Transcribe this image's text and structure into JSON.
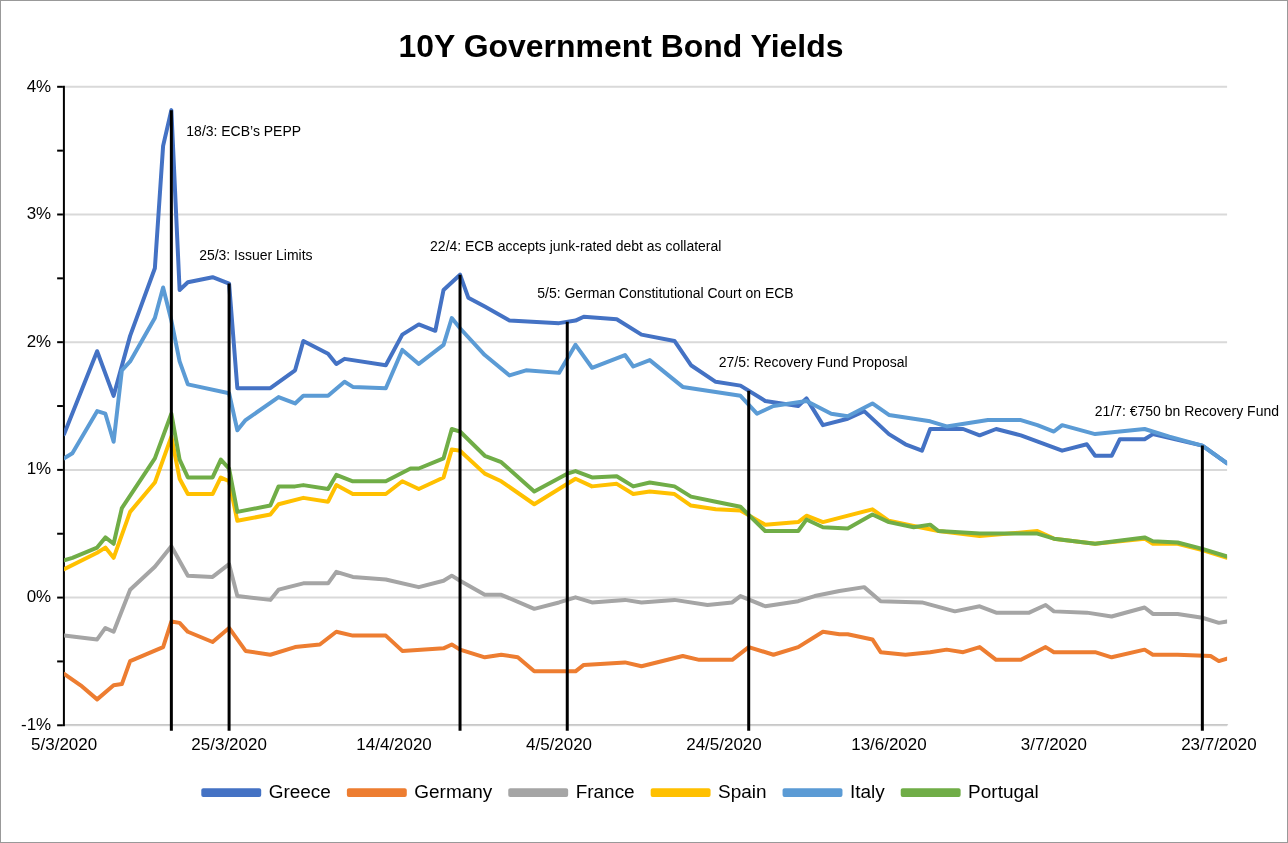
{
  "chart_data": {
    "type": "line",
    "title": "10Y Government Bond Yields",
    "marker": "none",
    "line_style": "solid",
    "grid": "y",
    "legend": "bottom",
    "xlim": [
      "2020-03-05",
      "2020-07-24"
    ],
    "xticks": [
      {
        "value": "2020-03-05",
        "label": "5/3/2020"
      },
      {
        "value": "2020-03-25",
        "label": "25/3/2020"
      },
      {
        "value": "2020-04-14",
        "label": "14/4/2020"
      },
      {
        "value": "2020-05-04",
        "label": "4/5/2020"
      },
      {
        "value": "2020-05-24",
        "label": "24/5/2020"
      },
      {
        "value": "2020-06-13",
        "label": "13/6/2020"
      },
      {
        "value": "2020-07-03",
        "label": "3/7/2020"
      },
      {
        "value": "2020-07-23",
        "label": "23/7/2020"
      }
    ],
    "ylim": [
      -1,
      4
    ],
    "yticks": [
      {
        "value": -1,
        "label": "-1%"
      },
      {
        "value": -0.5,
        "label": null
      },
      {
        "value": 0,
        "label": "0%"
      },
      {
        "value": 0.5,
        "label": null
      },
      {
        "value": 1,
        "label": "1%"
      },
      {
        "value": 1.5,
        "label": null
      },
      {
        "value": 2,
        "label": "2%"
      },
      {
        "value": 2.5,
        "label": null
      },
      {
        "value": 3,
        "label": "3%"
      },
      {
        "value": 3.5,
        "label": null
      },
      {
        "value": 4,
        "label": "4%"
      }
    ],
    "ref_lines": [
      {
        "axis": "x",
        "value": "2020-03-18",
        "label": "18/3: ECB’s PEPP",
        "color": "#000000"
      },
      {
        "axis": "x",
        "value": "2020-03-25",
        "label": "25/3: Issuer Limits",
        "color": "#000000"
      },
      {
        "axis": "x",
        "value": "2020-04-22",
        "label": "22/4: ECB accepts junk-rated debt as collateral",
        "color": "#000000"
      },
      {
        "axis": "x",
        "value": "2020-05-05",
        "label": "5/5: German Constitutional Court on ECB",
        "color": "#000000"
      },
      {
        "axis": "x",
        "value": "2020-05-27",
        "label": "27/5: Recovery Fund Proposal",
        "color": "#000000"
      },
      {
        "axis": "x",
        "value": "2020-07-21",
        "label": "21/7: €750 bn Recovery Fund",
        "color": "#000000"
      }
    ],
    "series": [
      {
        "name": "Greece",
        "color": "#4472c4",
        "x": [
          "2020-03-05",
          "2020-03-09",
          "2020-03-11",
          "2020-03-13",
          "2020-03-16",
          "2020-03-17",
          "2020-03-18",
          "2020-03-19",
          "2020-03-20",
          "2020-03-23",
          "2020-03-25",
          "2020-03-26",
          "2020-03-30",
          "2020-04-02",
          "2020-04-03",
          "2020-04-06",
          "2020-04-07",
          "2020-04-08",
          "2020-04-13",
          "2020-04-15",
          "2020-04-17",
          "2020-04-19",
          "2020-04-20",
          "2020-04-22",
          "2020-04-23",
          "2020-04-25",
          "2020-04-28",
          "2020-05-04",
          "2020-05-06",
          "2020-05-07",
          "2020-05-11",
          "2020-05-14",
          "2020-05-18",
          "2020-05-20",
          "2020-05-23",
          "2020-05-26",
          "2020-05-29",
          "2020-06-02",
          "2020-06-03",
          "2020-06-05",
          "2020-06-08",
          "2020-06-10",
          "2020-06-13",
          "2020-06-15",
          "2020-06-17",
          "2020-06-18",
          "2020-06-22",
          "2020-06-24",
          "2020-06-26",
          "2020-06-29",
          "2020-07-04",
          "2020-07-07",
          "2020-07-08",
          "2020-07-10",
          "2020-07-11",
          "2020-07-14",
          "2020-07-15",
          "2020-07-21",
          "2020-07-24"
        ],
        "values": [
          1.28,
          1.93,
          1.58,
          2.05,
          2.58,
          3.54,
          3.82,
          2.41,
          2.47,
          2.51,
          2.46,
          1.64,
          1.64,
          1.78,
          2.01,
          1.91,
          1.83,
          1.87,
          1.82,
          2.06,
          2.14,
          2.09,
          2.41,
          2.53,
          2.35,
          2.28,
          2.17,
          2.15,
          2.17,
          2.2,
          2.18,
          2.06,
          2.01,
          1.82,
          1.69,
          1.66,
          1.54,
          1.5,
          1.56,
          1.35,
          1.4,
          1.46,
          1.28,
          1.2,
          1.15,
          1.32,
          1.32,
          1.27,
          1.32,
          1.27,
          1.15,
          1.2,
          1.11,
          1.11,
          1.24,
          1.24,
          1.28,
          1.19,
          1.05
        ]
      },
      {
        "name": "Germany",
        "color": "#ed7d31",
        "x": [
          "2020-03-05",
          "2020-03-07",
          "2020-03-09",
          "2020-03-11",
          "2020-03-12",
          "2020-03-13",
          "2020-03-17",
          "2020-03-18",
          "2020-03-19",
          "2020-03-20",
          "2020-03-23",
          "2020-03-25",
          "2020-03-27",
          "2020-03-30",
          "2020-04-02",
          "2020-04-05",
          "2020-04-07",
          "2020-04-09",
          "2020-04-13",
          "2020-04-15",
          "2020-04-20",
          "2020-04-21",
          "2020-04-22",
          "2020-04-25",
          "2020-04-27",
          "2020-04-29",
          "2020-05-01",
          "2020-05-06",
          "2020-05-07",
          "2020-05-12",
          "2020-05-14",
          "2020-05-19",
          "2020-05-21",
          "2020-05-25",
          "2020-05-27",
          "2020-05-30",
          "2020-06-02",
          "2020-06-05",
          "2020-06-07",
          "2020-06-08",
          "2020-06-11",
          "2020-06-12",
          "2020-06-15",
          "2020-06-18",
          "2020-06-20",
          "2020-06-22",
          "2020-06-24",
          "2020-06-26",
          "2020-06-29",
          "2020-07-02",
          "2020-07-03",
          "2020-07-08",
          "2020-07-10",
          "2020-07-14",
          "2020-07-15",
          "2020-07-18",
          "2020-07-22",
          "2020-07-23",
          "2020-07-24"
        ],
        "values": [
          -0.6,
          -0.69,
          -0.8,
          -0.69,
          -0.68,
          -0.5,
          -0.39,
          -0.19,
          -0.2,
          -0.27,
          -0.35,
          -0.24,
          -0.42,
          -0.45,
          -0.39,
          -0.37,
          -0.27,
          -0.3,
          -0.3,
          -0.42,
          -0.4,
          -0.37,
          -0.41,
          -0.47,
          -0.45,
          -0.47,
          -0.58,
          -0.58,
          -0.53,
          -0.51,
          -0.54,
          -0.46,
          -0.49,
          -0.49,
          -0.39,
          -0.45,
          -0.39,
          -0.27,
          -0.29,
          -0.29,
          -0.33,
          -0.43,
          -0.45,
          -0.43,
          -0.41,
          -0.43,
          -0.39,
          -0.49,
          -0.49,
          -0.39,
          -0.43,
          -0.43,
          -0.47,
          -0.41,
          -0.45,
          -0.45,
          -0.46,
          -0.5,
          -0.48
        ]
      },
      {
        "name": "France",
        "color": "#a5a5a5",
        "x": [
          "2020-03-05",
          "2020-03-09",
          "2020-03-10",
          "2020-03-11",
          "2020-03-13",
          "2020-03-16",
          "2020-03-18",
          "2020-03-20",
          "2020-03-23",
          "2020-03-25",
          "2020-03-26",
          "2020-03-30",
          "2020-03-31",
          "2020-04-03",
          "2020-04-06",
          "2020-04-07",
          "2020-04-09",
          "2020-04-13",
          "2020-04-17",
          "2020-04-20",
          "2020-04-21",
          "2020-04-22",
          "2020-04-25",
          "2020-04-27",
          "2020-05-01",
          "2020-05-04",
          "2020-05-06",
          "2020-05-08",
          "2020-05-12",
          "2020-05-14",
          "2020-05-18",
          "2020-05-22",
          "2020-05-25",
          "2020-05-26",
          "2020-05-29",
          "2020-06-02",
          "2020-06-04",
          "2020-06-07",
          "2020-06-10",
          "2020-06-12",
          "2020-06-17",
          "2020-06-21",
          "2020-06-24",
          "2020-06-26",
          "2020-06-30",
          "2020-07-02",
          "2020-07-03",
          "2020-07-07",
          "2020-07-10",
          "2020-07-14",
          "2020-07-15",
          "2020-07-18",
          "2020-07-21",
          "2020-07-23",
          "2020-07-24"
        ],
        "values": [
          -0.3,
          -0.33,
          -0.24,
          -0.27,
          0.06,
          0.24,
          0.4,
          0.17,
          0.16,
          0.26,
          0.01,
          -0.02,
          0.06,
          0.11,
          0.11,
          0.2,
          0.16,
          0.14,
          0.08,
          0.13,
          0.17,
          0.13,
          0.02,
          0.02,
          -0.09,
          -0.04,
          0,
          -0.04,
          -0.02,
          -0.04,
          -0.02,
          -0.06,
          -0.04,
          0.01,
          -0.07,
          -0.03,
          0.01,
          0.05,
          0.08,
          -0.03,
          -0.04,
          -0.11,
          -0.07,
          -0.12,
          -0.12,
          -0.06,
          -0.11,
          -0.12,
          -0.15,
          -0.08,
          -0.13,
          -0.13,
          -0.16,
          -0.2,
          -0.19
        ]
      },
      {
        "name": "Spain",
        "color": "#ffc000",
        "x": [
          "2020-03-05",
          "2020-03-09",
          "2020-03-10",
          "2020-03-11",
          "2020-03-13",
          "2020-03-16",
          "2020-03-18",
          "2020-03-19",
          "2020-03-20",
          "2020-03-23",
          "2020-03-24",
          "2020-03-25",
          "2020-03-26",
          "2020-03-30",
          "2020-03-31",
          "2020-04-03",
          "2020-04-06",
          "2020-04-07",
          "2020-04-09",
          "2020-04-13",
          "2020-04-15",
          "2020-04-17",
          "2020-04-20",
          "2020-04-21",
          "2020-04-22",
          "2020-04-25",
          "2020-04-27",
          "2020-05-01",
          "2020-05-06",
          "2020-05-08",
          "2020-05-11",
          "2020-05-13",
          "2020-05-15",
          "2020-05-18",
          "2020-05-20",
          "2020-05-23",
          "2020-05-26",
          "2020-05-29",
          "2020-06-02",
          "2020-06-03",
          "2020-06-05",
          "2020-06-11",
          "2020-06-13",
          "2020-06-16",
          "2020-06-19",
          "2020-06-24",
          "2020-07-01",
          "2020-07-03",
          "2020-07-08",
          "2020-07-14",
          "2020-07-15",
          "2020-07-18",
          "2020-07-21",
          "2020-07-24"
        ],
        "values": [
          0.22,
          0.35,
          0.39,
          0.31,
          0.67,
          0.9,
          1.26,
          0.93,
          0.81,
          0.81,
          0.94,
          0.91,
          0.6,
          0.65,
          0.73,
          0.78,
          0.75,
          0.88,
          0.81,
          0.81,
          0.91,
          0.85,
          0.94,
          1.16,
          1.15,
          0.97,
          0.91,
          0.73,
          0.93,
          0.87,
          0.89,
          0.81,
          0.83,
          0.81,
          0.72,
          0.69,
          0.68,
          0.57,
          0.59,
          0.64,
          0.59,
          0.69,
          0.6,
          0.56,
          0.52,
          0.48,
          0.52,
          0.46,
          0.42,
          0.46,
          0.42,
          0.42,
          0.37,
          0.31
        ]
      },
      {
        "name": "Italy",
        "color": "#5b9bd5",
        "x": [
          "2020-03-05",
          "2020-03-06",
          "2020-03-09",
          "2020-03-10",
          "2020-03-11",
          "2020-03-12",
          "2020-03-13",
          "2020-03-16",
          "2020-03-17",
          "2020-03-18",
          "2020-03-19",
          "2020-03-20",
          "2020-03-25",
          "2020-03-26",
          "2020-03-27",
          "2020-03-31",
          "2020-04-02",
          "2020-04-03",
          "2020-04-06",
          "2020-04-08",
          "2020-04-09",
          "2020-04-13",
          "2020-04-15",
          "2020-04-17",
          "2020-04-20",
          "2020-04-21",
          "2020-04-22",
          "2020-04-25",
          "2020-04-28",
          "2020-04-30",
          "2020-05-04",
          "2020-05-06",
          "2020-05-08",
          "2020-05-12",
          "2020-05-13",
          "2020-05-15",
          "2020-05-19",
          "2020-05-23",
          "2020-05-26",
          "2020-05-28",
          "2020-05-30",
          "2020-06-03",
          "2020-06-06",
          "2020-06-08",
          "2020-06-11",
          "2020-06-13",
          "2020-06-16",
          "2020-06-18",
          "2020-06-20",
          "2020-06-25",
          "2020-06-29",
          "2020-07-01",
          "2020-07-03",
          "2020-07-04",
          "2020-07-08",
          "2020-07-14",
          "2020-07-17",
          "2020-07-21",
          "2020-07-24"
        ],
        "values": [
          1.09,
          1.13,
          1.46,
          1.44,
          1.22,
          1.78,
          1.85,
          2.19,
          2.43,
          2.17,
          1.85,
          1.67,
          1.6,
          1.31,
          1.39,
          1.57,
          1.52,
          1.58,
          1.58,
          1.69,
          1.65,
          1.64,
          1.94,
          1.83,
          1.98,
          2.19,
          2.11,
          1.9,
          1.74,
          1.78,
          1.76,
          1.98,
          1.8,
          1.9,
          1.81,
          1.86,
          1.65,
          1.61,
          1.58,
          1.44,
          1.5,
          1.54,
          1.44,
          1.42,
          1.52,
          1.43,
          1.4,
          1.38,
          1.34,
          1.39,
          1.39,
          1.35,
          1.3,
          1.35,
          1.28,
          1.32,
          1.26,
          1.19,
          1.05
        ]
      },
      {
        "name": "Portugal",
        "color": "#70ad47",
        "x": [
          "2020-03-05",
          "2020-03-06",
          "2020-03-09",
          "2020-03-10",
          "2020-03-11",
          "2020-03-12",
          "2020-03-16",
          "2020-03-18",
          "2020-03-19",
          "2020-03-20",
          "2020-03-23",
          "2020-03-24",
          "2020-03-25",
          "2020-03-26",
          "2020-03-30",
          "2020-03-31",
          "2020-04-02",
          "2020-04-03",
          "2020-04-06",
          "2020-04-07",
          "2020-04-09",
          "2020-04-13",
          "2020-04-16",
          "2020-04-17",
          "2020-04-20",
          "2020-04-21",
          "2020-04-22",
          "2020-04-25",
          "2020-04-27",
          "2020-05-01",
          "2020-05-05",
          "2020-05-06",
          "2020-05-08",
          "2020-05-11",
          "2020-05-13",
          "2020-05-15",
          "2020-05-18",
          "2020-05-20",
          "2020-05-23",
          "2020-05-26",
          "2020-05-29",
          "2020-06-02",
          "2020-06-03",
          "2020-06-05",
          "2020-06-08",
          "2020-06-11",
          "2020-06-13",
          "2020-06-16",
          "2020-06-18",
          "2020-06-19",
          "2020-06-24",
          "2020-07-01",
          "2020-07-03",
          "2020-07-08",
          "2020-07-14",
          "2020-07-15",
          "2020-07-18",
          "2020-07-21",
          "2020-07-24"
        ],
        "values": [
          0.29,
          0.31,
          0.39,
          0.47,
          0.42,
          0.7,
          1.09,
          1.44,
          1.08,
          0.94,
          0.94,
          1.08,
          1.01,
          0.67,
          0.72,
          0.87,
          0.87,
          0.88,
          0.85,
          0.96,
          0.91,
          0.91,
          1.01,
          1.01,
          1.09,
          1.32,
          1.3,
          1.11,
          1.06,
          0.83,
          0.97,
          0.99,
          0.94,
          0.95,
          0.87,
          0.9,
          0.87,
          0.79,
          0.75,
          0.71,
          0.52,
          0.52,
          0.61,
          0.55,
          0.54,
          0.65,
          0.59,
          0.55,
          0.57,
          0.52,
          0.5,
          0.5,
          0.46,
          0.42,
          0.47,
          0.44,
          0.43,
          0.38,
          0.32
        ]
      }
    ]
  }
}
